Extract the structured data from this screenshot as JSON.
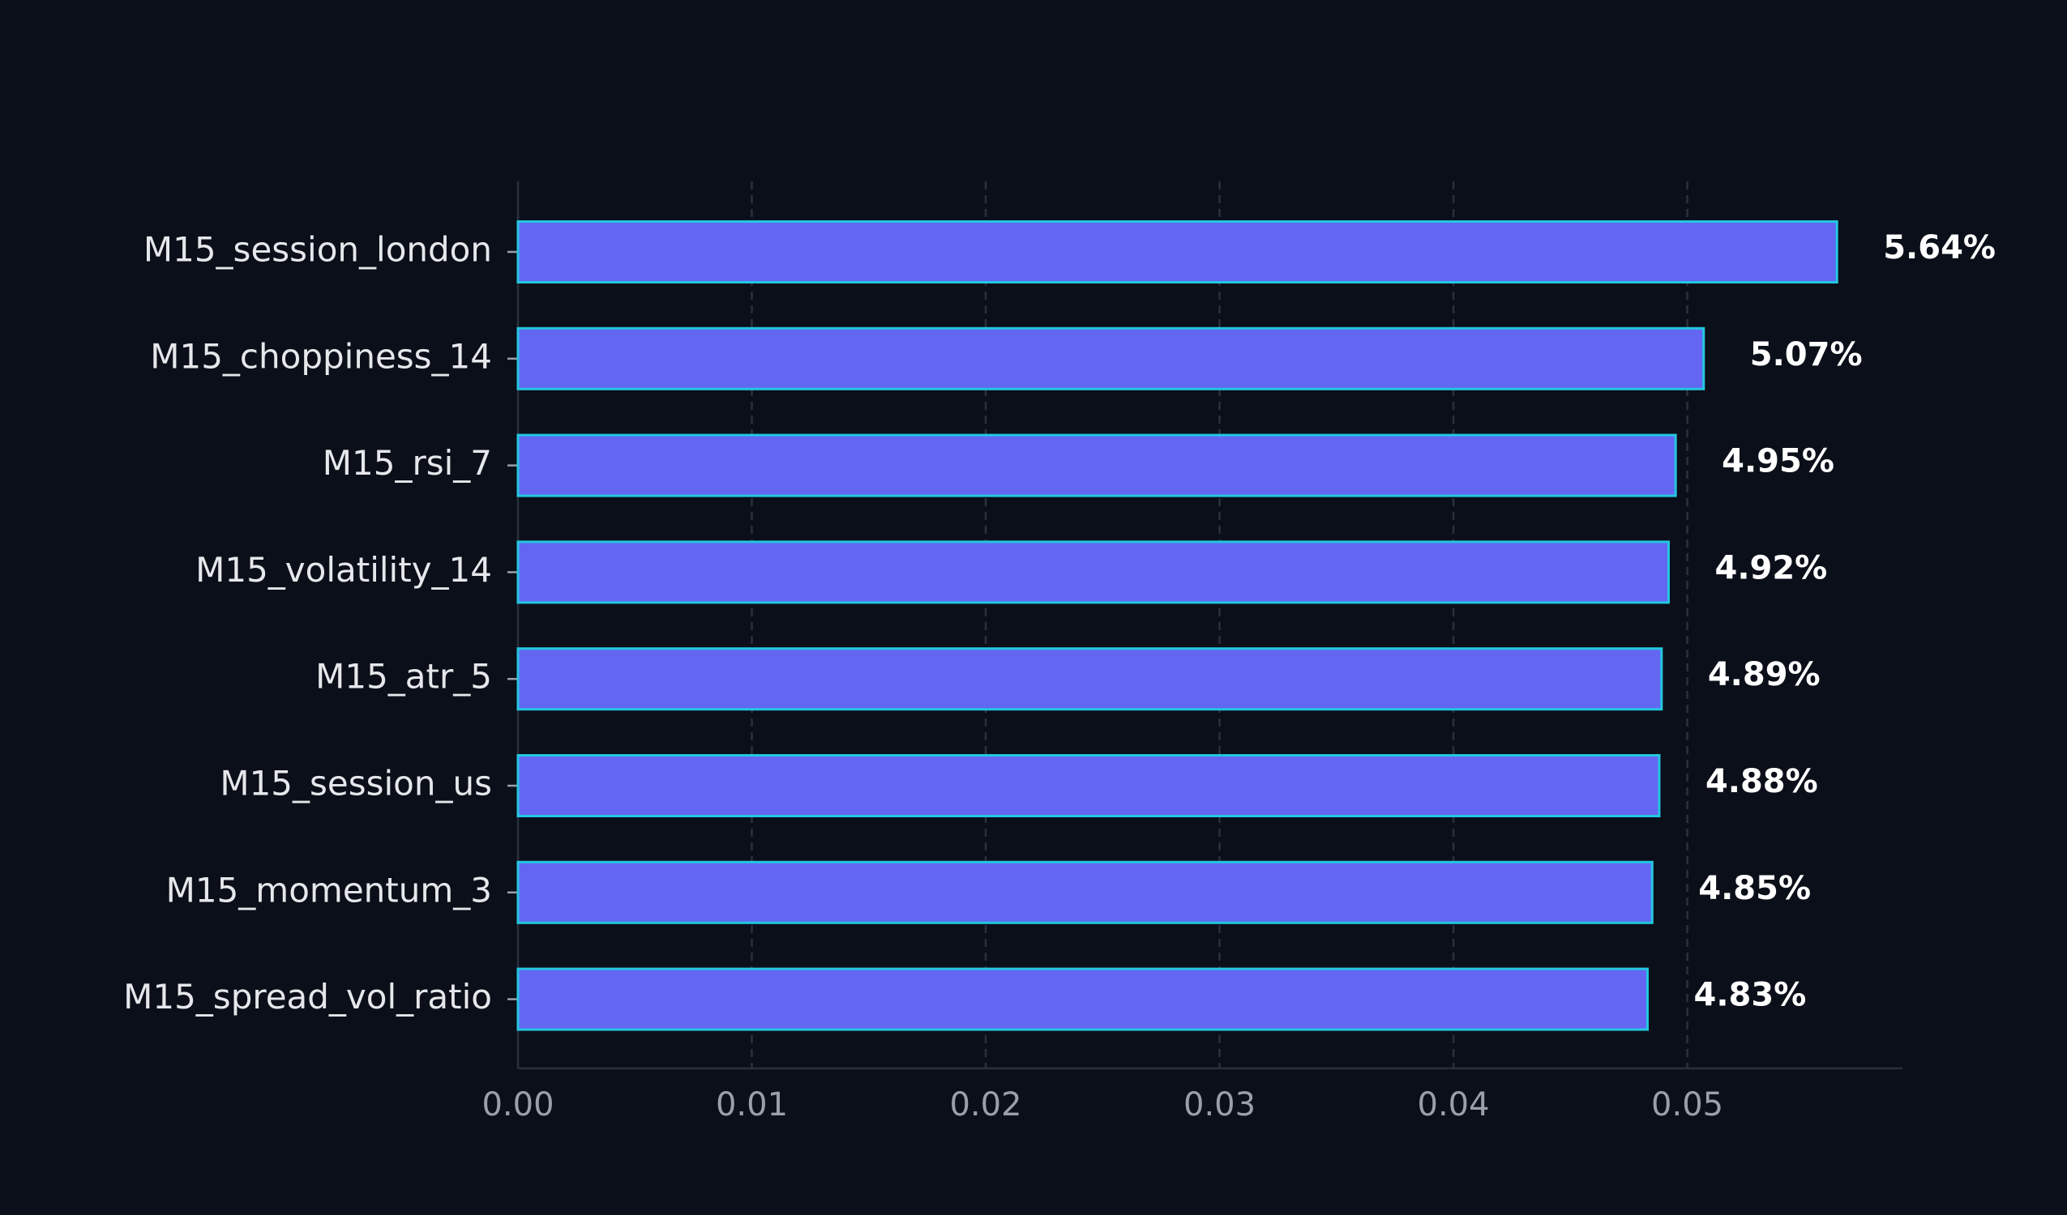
{
  "chart_data": {
    "type": "barh",
    "categories": [
      "M15_session_london",
      "M15_choppiness_14",
      "M15_rsi_7",
      "M15_volatility_14",
      "M15_atr_5",
      "M15_session_us",
      "M15_momentum_3",
      "M15_spread_vol_ratio"
    ],
    "values": [
      0.0564,
      0.0507,
      0.0495,
      0.0492,
      0.0489,
      0.0488,
      0.0485,
      0.0483
    ],
    "value_labels": [
      "5.64%",
      "5.07%",
      "4.95%",
      "4.92%",
      "4.89%",
      "4.88%",
      "4.85%",
      "4.83%"
    ],
    "color": "#6366f1",
    "edge_color": "#22c7e0",
    "xlim": [
      0,
      0.0592
    ],
    "xticks": [
      {
        "value": 0,
        "label": "0.00"
      },
      0.01,
      0.02,
      0.03,
      0.04,
      0.05
    ],
    "grid": true
  }
}
